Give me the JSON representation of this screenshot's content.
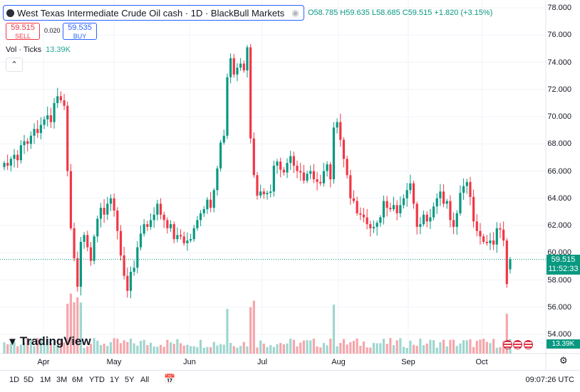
{
  "header": {
    "title": "West Texas Intermediate Crude Oil cash · 1D · BlackBull Markets",
    "ohlc": {
      "o": "O58.785",
      "h": "H59.635",
      "l": "L58.685",
      "c": "C59.515",
      "chg": "+1.820 (+3.15%)"
    }
  },
  "trade": {
    "sell_price": "59.515",
    "sell_label": "SELL",
    "spread": "0.020",
    "buy_price": "59.535",
    "buy_label": "BUY"
  },
  "volume_legend": {
    "label": "Vol · Ticks",
    "value": "13.39K"
  },
  "price_axis": {
    "labels": [
      "78.000",
      "76.000",
      "74.000",
      "72.000",
      "70.000",
      "68.000",
      "66.000",
      "64.000",
      "62.000",
      "60.000",
      "58.000",
      "56.000",
      "54.000"
    ]
  },
  "time_axis": {
    "labels": [
      "Apr",
      "May",
      "Jun",
      "Jul",
      "Aug",
      "Sep",
      "Oct"
    ]
  },
  "last_price": {
    "value": "59.515",
    "countdown": "11:52:33"
  },
  "volume_tag": "13.39K",
  "brand": "TradingView",
  "bottom_bar": {
    "timeframes": [
      "1D",
      "5D",
      "1M",
      "3M",
      "6M",
      "YTD",
      "1Y",
      "5Y",
      "All"
    ],
    "clock": "09:07:26 UTC"
  },
  "colors": {
    "up": "#089981",
    "down": "#f23645",
    "up_vol": "#9ed6cf",
    "down_vol": "#f5a6ab",
    "accent": "#2962ff"
  },
  "icons": {
    "symbol": "symbol-dot-icon",
    "visibility": "eye-icon",
    "collapse": "chevron-up-icon",
    "settings": "gear-icon",
    "calendar": "calendar-icon"
  },
  "chart_data": {
    "type": "candlestick",
    "title": "West Texas Intermediate Crude Oil cash · 1D · BlackBull Markets",
    "ylim": [
      53.5,
      78.5
    ],
    "x_labels": [
      "Apr",
      "May",
      "Jun",
      "Jul",
      "Aug",
      "Sep",
      "Oct"
    ],
    "last_close": 59.515,
    "closes": [
      66.6,
      66.4,
      66.9,
      67.2,
      66.8,
      67.9,
      68.2,
      68.0,
      68.6,
      69.1,
      68.8,
      69.4,
      69.8,
      70.1,
      69.6,
      71.0,
      71.5,
      71.2,
      70.8,
      66.0,
      61.8,
      59.6,
      57.5,
      60.8,
      61.3,
      60.4,
      59.4,
      61.2,
      62.5,
      63.3,
      62.8,
      63.6,
      64.0,
      63.1,
      61.6,
      59.8,
      58.3,
      57.2,
      58.6,
      58.9,
      60.4,
      61.4,
      62.1,
      61.9,
      62.4,
      62.8,
      63.6,
      62.8,
      62.4,
      61.8,
      62.1,
      61.0,
      61.3,
      61.2,
      60.7,
      60.9,
      61.0,
      61.8,
      62.4,
      62.9,
      63.2,
      63.9,
      63.3,
      64.6,
      66.2,
      68.1,
      68.6,
      72.9,
      74.3,
      73.1,
      73.6,
      73.9,
      73.4,
      75.1,
      68.4,
      65.7,
      64.2,
      64.5,
      64.3,
      64.4,
      64.5,
      66.4,
      66.7,
      66.1,
      65.9,
      66.6,
      67.1,
      66.4,
      66.0,
      65.9,
      65.3,
      65.8,
      66.0,
      65.4,
      65.2,
      65.1,
      66.0,
      66.5,
      65.4,
      69.2,
      69.6,
      68.3,
      66.9,
      65.7,
      64.0,
      63.8,
      62.9,
      62.8,
      62.6,
      62.1,
      61.8,
      61.9,
      62.2,
      62.6,
      63.8,
      63.3,
      63.2,
      63.5,
      62.9,
      63.5,
      64.0,
      64.6,
      65.1,
      63.6,
      61.9,
      62.1,
      62.8,
      62.3,
      62.6,
      63.4,
      64.0,
      64.5,
      63.6,
      63.8,
      62.4,
      61.9,
      62.9,
      64.4,
      64.9,
      65.2,
      64.1,
      62.3,
      61.6,
      61.2,
      60.8,
      60.7,
      60.9,
      60.6,
      61.8,
      61.7,
      60.9,
      57.7,
      59.5
    ],
    "last_price_label": "59.515",
    "volume_last": "13.39K"
  }
}
